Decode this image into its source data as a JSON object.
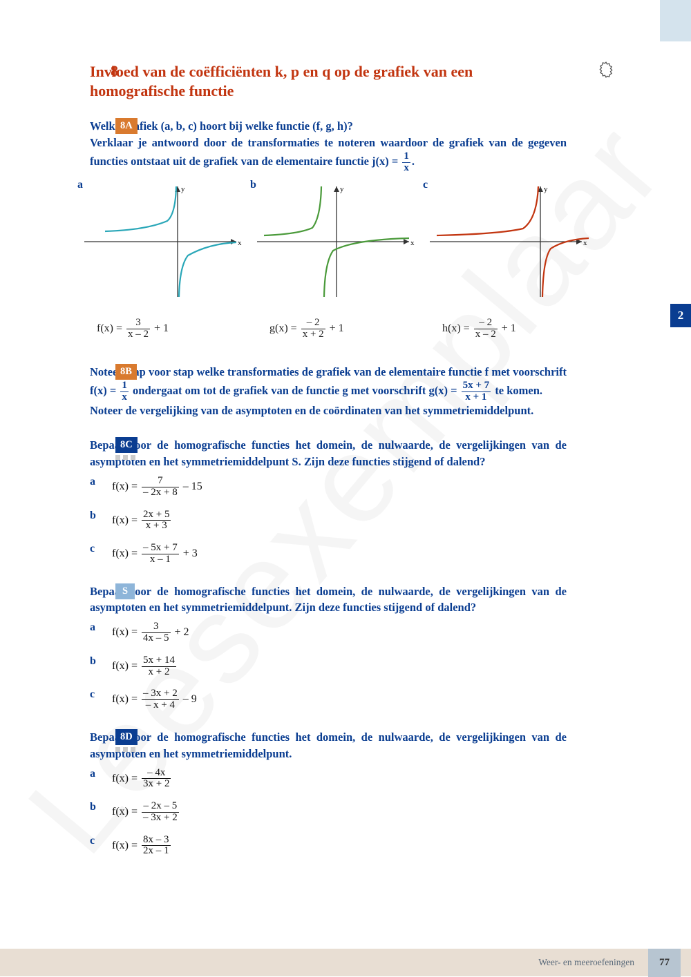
{
  "watermark": "Leesexemplaar",
  "side_tab": "2",
  "section": {
    "number": "8",
    "title": "Invloed van de coëfficiënten k, p en q op de grafiek van een homografische functie"
  },
  "q8A": {
    "badge": "8A",
    "line1": "Welke grafiek (a, b, c) hoort bij welke functie (f, g, h)?",
    "line2": "Verklaar je antwoord door de transformaties te noteren waardoor de grafiek van de gegeven functies ontstaat uit de grafiek van de elementaire functie j(x) = ",
    "jfrac_num": "1",
    "jfrac_den": "x",
    "period": ".",
    "chart_labels": {
      "a": "a",
      "b": "b",
      "c": "c"
    },
    "axes": {
      "x": "x",
      "y": "y"
    },
    "functions": {
      "f": {
        "lhs": "f(x) = ",
        "num": "3",
        "den": "x – 2",
        "tail": " + 1"
      },
      "g": {
        "lhs": "g(x) = ",
        "num": "– 2",
        "den": "x + 2",
        "tail": " + 1"
      },
      "h": {
        "lhs": "h(x) = ",
        "num": "– 2",
        "den": "x – 2",
        "tail": " + 1"
      }
    },
    "curve_colors": {
      "a": "#2aa7b8",
      "b": "#4a9a3a",
      "c": "#c23510"
    }
  },
  "q8B": {
    "badge": "8B",
    "part1": "Noteer stap voor stap welke transformaties de grafiek van de elementaire functie f met voorschrift f(x) = ",
    "f1_num": "1",
    "f1_den": "x",
    "part2": " ondergaat om tot de grafiek van de functie g met voorschrift g(x) = ",
    "f2_num": "5x + 7",
    "f2_den": "x + 1",
    "part3": " te komen.",
    "part4": "Noteer de vergelijking van de asymptoten en de coördinaten van het symmetriemiddelpunt."
  },
  "q8C": {
    "badge": "8C",
    "text": "Bepaal voor de homografische functies het domein, de nulwaarde, de vergelijkingen van de asymptoten en het symmetriemiddelpunt S. Zijn deze functies stijgend of dalend?",
    "items": [
      {
        "label": "a",
        "lhs": "f(x) = ",
        "num": "7",
        "den": "– 2x + 8",
        "tail": " – 15"
      },
      {
        "label": "b",
        "lhs": "f(x) = ",
        "num": "2x + 5",
        "den": "x + 3",
        "tail": ""
      },
      {
        "label": "c",
        "lhs": "f(x) = ",
        "num": "– 5x + 7",
        "den": "x – 1",
        "tail": " + 3"
      }
    ]
  },
  "qS": {
    "badge": "S",
    "text": "Bepaal voor de homografische functies het domein, de nulwaarde, de vergelijkingen van de asymptoten en het symmetriemiddelpunt. Zijn deze functies stijgend of dalend?",
    "items": [
      {
        "label": "a",
        "lhs": "f(x) = ",
        "num": "3",
        "den": "4x – 5",
        "tail": " + 2"
      },
      {
        "label": "b",
        "lhs": "f(x) = ",
        "num": "5x + 14",
        "den": "x + 2",
        "tail": ""
      },
      {
        "label": "c",
        "lhs": "f(x) = ",
        "num": "– 3x + 2",
        "den": "– x + 4",
        "tail": " – 9"
      }
    ]
  },
  "q8D": {
    "badge": "8D",
    "text": "Bepaal voor de homografische functies het domein, de nulwaarde, de vergelijkingen van de asymptoten en het symmetriemiddelpunt.",
    "items": [
      {
        "label": "a",
        "lhs": "f(x) = ",
        "num": "– 4x",
        "den": "3x + 2",
        "tail": ""
      },
      {
        "label": "b",
        "lhs": "f(x) = ",
        "num": "– 2x – 5",
        "den": "– 3x + 2",
        "tail": ""
      },
      {
        "label": "c",
        "lhs": "f(x) = ",
        "num": "8x – 3",
        "den": "2x – 1",
        "tail": ""
      }
    ]
  },
  "footer": {
    "label": "Weer- en meeroefeningen",
    "page": "77"
  }
}
